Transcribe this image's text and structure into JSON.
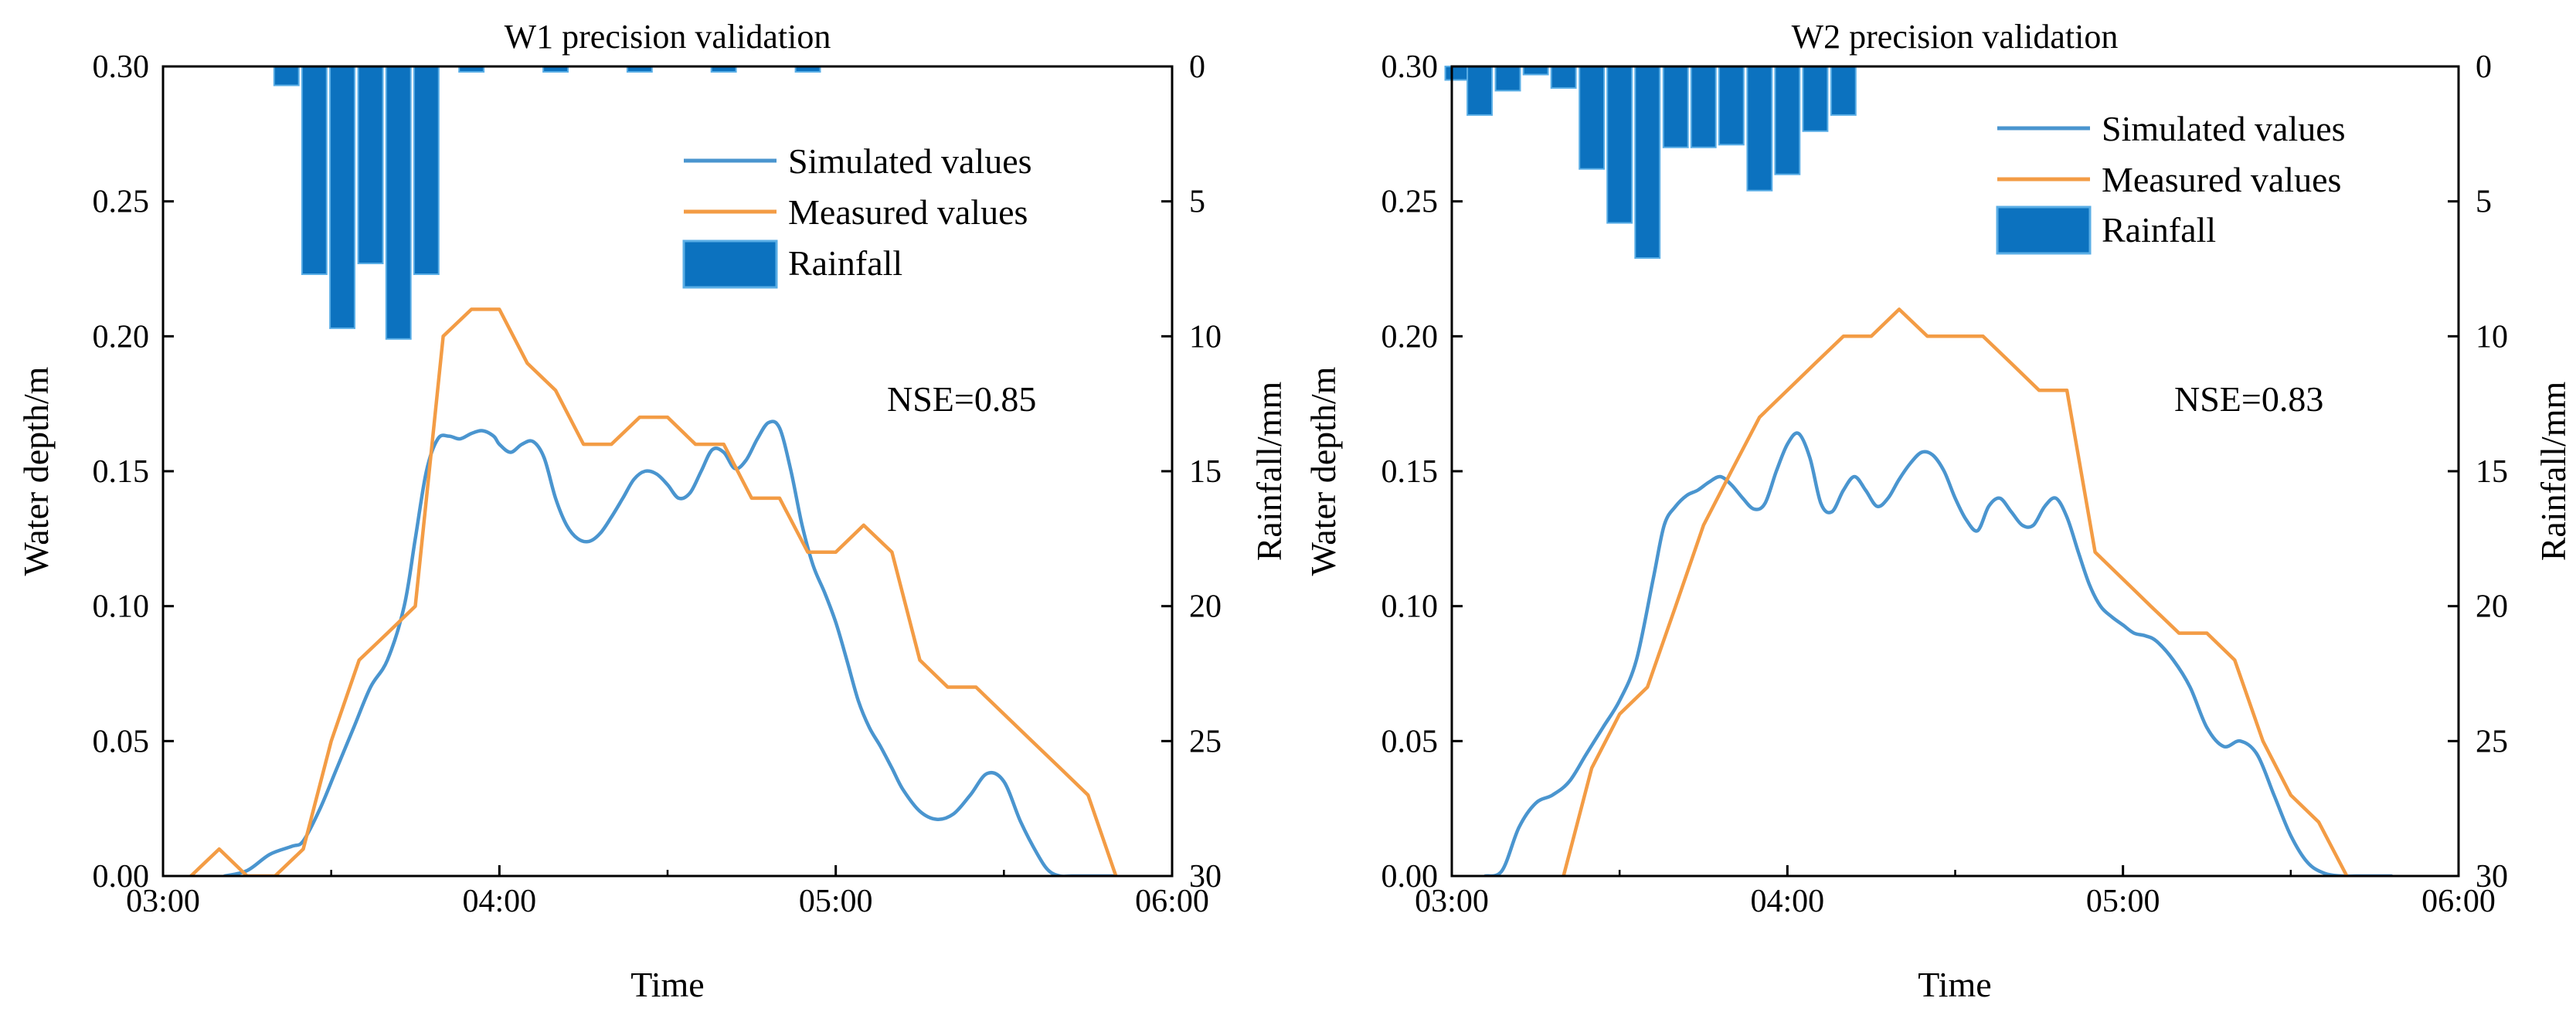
{
  "colors": {
    "simulated": "#4a95cf",
    "measured": "#f39c45",
    "rainfall_fill": "#0c72bf",
    "rainfall_edge": "#5aaee6"
  },
  "chart_data": [
    {
      "type": "line",
      "title": "W1 precision validation",
      "xlabel": "Time",
      "ylabel": "Water depth/m",
      "y2label": "Rainfall/mm",
      "xlim": [
        3.0,
        6.0
      ],
      "ylim": [
        0,
        0.3
      ],
      "y2lim": [
        30,
        0
      ],
      "xticks": [
        3,
        4,
        5,
        6
      ],
      "xtick_labels": [
        "03:00",
        "04:00",
        "05:00",
        "06:00"
      ],
      "yticks": [
        0,
        0.05,
        0.1,
        0.15,
        0.2,
        0.25,
        0.3
      ],
      "ytick_labels": [
        "0.00",
        "0.05",
        "0.10",
        "0.15",
        "0.20",
        "0.25",
        "0.30"
      ],
      "y2ticks": [
        0,
        5,
        10,
        15,
        20,
        25,
        30
      ],
      "y2tick_labels": [
        "0",
        "5",
        "10",
        "15",
        "20",
        "25",
        "30"
      ],
      "annotation": "NSE=0.85",
      "legend": [
        "Simulated values",
        "Measured values",
        "Rainfall"
      ],
      "legend_position": "top-right",
      "rainfall": {
        "name": "Rainfall",
        "times": [
          3.367,
          3.45,
          3.533,
          3.617,
          3.7,
          3.783,
          3.917,
          4.167,
          4.417,
          4.667,
          4.917
        ],
        "values": [
          0.7,
          7.7,
          9.7,
          7.3,
          10.1,
          7.7,
          0.2,
          0.2,
          0.2,
          0.2,
          0.2
        ]
      },
      "series": [
        {
          "name": "Simulated values",
          "x": [
            3.183,
            3.25,
            3.317,
            3.383,
            3.417,
            3.467,
            3.517,
            3.567,
            3.617,
            3.667,
            3.717,
            3.75,
            3.783,
            3.817,
            3.85,
            3.883,
            3.917,
            3.95,
            3.983,
            4.0,
            4.033,
            4.067,
            4.1,
            4.133,
            4.167,
            4.2,
            4.233,
            4.267,
            4.3,
            4.333,
            4.367,
            4.4,
            4.433,
            4.467,
            4.5,
            4.533,
            4.567,
            4.6,
            4.633,
            4.667,
            4.7,
            4.733,
            4.767,
            4.8,
            4.833,
            4.867,
            4.9,
            4.933,
            4.967,
            5.0,
            5.033,
            5.067,
            5.1,
            5.133,
            5.167,
            5.2,
            5.25,
            5.3,
            5.35,
            5.4,
            5.45,
            5.5,
            5.55,
            5.6,
            5.633,
            5.667,
            5.7,
            5.733,
            5.767,
            5.8,
            5.833
          ],
          "y": [
            0.0,
            0.002,
            0.008,
            0.011,
            0.013,
            0.025,
            0.04,
            0.055,
            0.07,
            0.08,
            0.1,
            0.125,
            0.15,
            0.162,
            0.163,
            0.162,
            0.164,
            0.165,
            0.163,
            0.16,
            0.157,
            0.16,
            0.161,
            0.155,
            0.14,
            0.13,
            0.125,
            0.124,
            0.127,
            0.133,
            0.14,
            0.147,
            0.15,
            0.149,
            0.145,
            0.14,
            0.142,
            0.15,
            0.158,
            0.157,
            0.151,
            0.154,
            0.162,
            0.168,
            0.166,
            0.15,
            0.13,
            0.115,
            0.105,
            0.094,
            0.08,
            0.065,
            0.055,
            0.048,
            0.04,
            0.032,
            0.024,
            0.021,
            0.023,
            0.03,
            0.038,
            0.035,
            0.02,
            0.008,
            0.002,
            0.0,
            0.0,
            0.0,
            0.0,
            0.0,
            0.0
          ]
        },
        {
          "name": "Measured values",
          "x": [
            3.083,
            3.167,
            3.25,
            3.333,
            3.417,
            3.5,
            3.583,
            3.667,
            3.75,
            3.833,
            3.917,
            4.0,
            4.083,
            4.167,
            4.25,
            4.333,
            4.417,
            4.5,
            4.583,
            4.667,
            4.75,
            4.833,
            4.917,
            5.0,
            5.083,
            5.167,
            5.25,
            5.333,
            5.417,
            5.5,
            5.583,
            5.667,
            5.75,
            5.833
          ],
          "y": [
            0.0,
            0.01,
            0.0,
            0.0,
            0.01,
            0.05,
            0.08,
            0.09,
            0.1,
            0.2,
            0.21,
            0.21,
            0.19,
            0.18,
            0.16,
            0.16,
            0.17,
            0.17,
            0.16,
            0.16,
            0.14,
            0.14,
            0.12,
            0.12,
            0.13,
            0.12,
            0.08,
            0.07,
            0.07,
            0.06,
            0.05,
            0.04,
            0.03,
            0.0
          ]
        }
      ]
    },
    {
      "type": "line",
      "title": "W2 precision validation",
      "xlabel": "Time",
      "ylabel": "Water depth/m",
      "y2label": "Rainfall/mm",
      "xlim": [
        3.0,
        6.0
      ],
      "ylim": [
        0,
        0.3
      ],
      "y2lim": [
        30,
        0
      ],
      "xticks": [
        3,
        4,
        5,
        6
      ],
      "xtick_labels": [
        "03:00",
        "04:00",
        "05:00",
        "06:00"
      ],
      "yticks": [
        0,
        0.05,
        0.1,
        0.15,
        0.2,
        0.25,
        0.3
      ],
      "ytick_labels": [
        "0.00",
        "0.05",
        "0.10",
        "0.15",
        "0.20",
        "0.25",
        "0.30"
      ],
      "y2ticks": [
        0,
        5,
        10,
        15,
        20,
        25,
        30
      ],
      "y2tick_labels": [
        "0",
        "5",
        "10",
        "15",
        "20",
        "25",
        "30"
      ],
      "annotation": "NSE=0.83",
      "legend": [
        "Simulated values",
        "Measured values",
        "Rainfall"
      ],
      "legend_position": "top-right",
      "rainfall": {
        "name": "Rainfall",
        "times": [
          3.017,
          3.083,
          3.167,
          3.25,
          3.333,
          3.417,
          3.5,
          3.583,
          3.667,
          3.75,
          3.833,
          3.917,
          4.0,
          4.083,
          4.167
        ],
        "values": [
          0.5,
          1.8,
          0.9,
          0.3,
          0.8,
          3.8,
          5.8,
          7.1,
          3.0,
          3.0,
          2.9,
          4.6,
          4.0,
          2.4,
          1.8
        ]
      },
      "series": [
        {
          "name": "Simulated values",
          "x": [
            3.1,
            3.15,
            3.2,
            3.25,
            3.3,
            3.35,
            3.4,
            3.45,
            3.5,
            3.55,
            3.6,
            3.633,
            3.667,
            3.7,
            3.733,
            3.767,
            3.8,
            3.833,
            3.867,
            3.9,
            3.933,
            3.967,
            4.0,
            4.033,
            4.067,
            4.1,
            4.133,
            4.167,
            4.2,
            4.233,
            4.267,
            4.3,
            4.333,
            4.367,
            4.4,
            4.433,
            4.467,
            4.5,
            4.533,
            4.567,
            4.6,
            4.633,
            4.667,
            4.7,
            4.733,
            4.767,
            4.8,
            4.833,
            4.867,
            4.9,
            4.933,
            4.967,
            5.0,
            5.033,
            5.067,
            5.1,
            5.15,
            5.2,
            5.25,
            5.3,
            5.35,
            5.4,
            5.45,
            5.5,
            5.55,
            5.6,
            5.65,
            5.7,
            5.75,
            5.8
          ],
          "y": [
            0.0,
            0.002,
            0.018,
            0.027,
            0.03,
            0.035,
            0.045,
            0.055,
            0.065,
            0.08,
            0.11,
            0.13,
            0.137,
            0.141,
            0.143,
            0.146,
            0.148,
            0.145,
            0.14,
            0.136,
            0.138,
            0.15,
            0.16,
            0.164,
            0.155,
            0.138,
            0.135,
            0.143,
            0.148,
            0.143,
            0.137,
            0.14,
            0.147,
            0.153,
            0.157,
            0.156,
            0.15,
            0.14,
            0.132,
            0.128,
            0.137,
            0.14,
            0.135,
            0.13,
            0.13,
            0.137,
            0.14,
            0.133,
            0.12,
            0.108,
            0.1,
            0.096,
            0.093,
            0.09,
            0.089,
            0.087,
            0.08,
            0.07,
            0.055,
            0.048,
            0.05,
            0.045,
            0.03,
            0.015,
            0.005,
            0.001,
            0.0,
            0.0,
            0.0,
            0.0
          ],
          "_note": "approximate curve"
        },
        {
          "name": "Measured values",
          "x": [
            3.333,
            3.417,
            3.5,
            3.583,
            3.667,
            3.75,
            3.833,
            3.917,
            4.0,
            4.083,
            4.167,
            4.25,
            4.333,
            4.417,
            4.5,
            4.583,
            4.667,
            4.75,
            4.833,
            4.917,
            5.0,
            5.083,
            5.167,
            5.25,
            5.333,
            5.417,
            5.5,
            5.583,
            5.667
          ],
          "y": [
            0.0,
            0.04,
            0.06,
            0.07,
            0.1,
            0.13,
            0.15,
            0.17,
            0.18,
            0.19,
            0.2,
            0.2,
            0.21,
            0.2,
            0.2,
            0.2,
            0.19,
            0.18,
            0.18,
            0.12,
            0.11,
            0.1,
            0.09,
            0.09,
            0.08,
            0.05,
            0.03,
            0.02,
            0.0
          ]
        }
      ]
    }
  ]
}
